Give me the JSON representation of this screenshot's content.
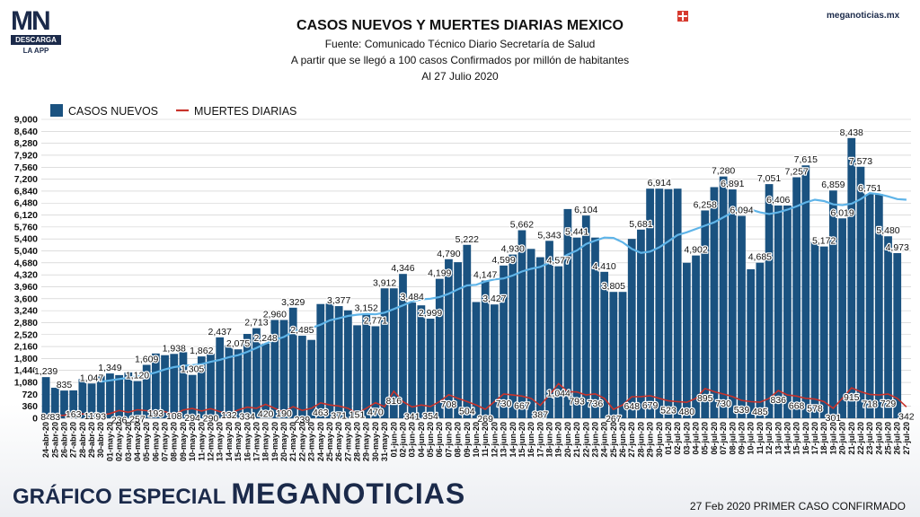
{
  "logo": {
    "mark": "MN",
    "descarga": "DESCARGA",
    "app": "LA APP"
  },
  "site_url": "meganoticias.mx",
  "footer": {
    "left": "GRÁFICO ESPECIAL",
    "brand": "MEGANOTICIAS",
    "right": "27 Feb 2020 PRIMER CASO CONFIRMADO"
  },
  "colors": {
    "bars": "#1a5280",
    "deaths": "#c8332b",
    "avg": "#5fb4e8",
    "brand": "#1b2a4a"
  },
  "chart_data": {
    "type": "bar",
    "title": "CASOS NUEVOS Y MUERTES DIARIAS MEXICO",
    "subtitles": [
      "Fuente: Comunicado Técnico Diario Secretaría de Salud",
      "A partir que se llegó a 100 casos Confirmados por millón de habitantes",
      "Al 27 Julio 2020"
    ],
    "legend": {
      "position": "top-left"
    },
    "ylim": [
      0,
      9000
    ],
    "yticks": [
      0,
      360,
      720,
      1080,
      1440,
      1800,
      2160,
      2520,
      2880,
      3240,
      3600,
      3960,
      4320,
      4680,
      5040,
      5400,
      5760,
      6120,
      6480,
      6840,
      7200,
      7560,
      7920,
      8280,
      8640,
      9000
    ],
    "grid": true,
    "categories": [
      "24-abr-20",
      "25-abr-20",
      "26-abr-20",
      "27-abr-20",
      "28-abr-20",
      "29-abr-20",
      "30-abr-20",
      "01-may-20",
      "02-may-20",
      "03-may-20",
      "04-may-20",
      "05-may-20",
      "06-may-20",
      "07-may-20",
      "08-may-20",
      "09-may-20",
      "10-may-20",
      "11-may-20",
      "12-may-20",
      "13-may-20",
      "14-may-20",
      "15-may-20",
      "16-may-20",
      "17-may-20",
      "18-may-20",
      "19-may-20",
      "20-may-20",
      "21-may-20",
      "22-may-20",
      "23-may-20",
      "24-may-20",
      "25-may-20",
      "26-may-20",
      "27-may-20",
      "28-may-20",
      "29-may-20",
      "30-may-20",
      "31-may-20",
      "01-jun-20",
      "02-jun-20",
      "03-jun-20",
      "04-jun-20",
      "05-jun-20",
      "06-jun-20",
      "07-jun-20",
      "08-jun-20",
      "09-jun-20",
      "10-jun-20",
      "11-jun-20",
      "12-jun-20",
      "13-jun-20",
      "14-jun-20",
      "15-jun-20",
      "16-jun-20",
      "17-jun-20",
      "18-jun-20",
      "19-jun-20",
      "20-jun-20",
      "21-jun-20",
      "22-jun-20",
      "23-jun-20",
      "24-jun-20",
      "25-jun-20",
      "26-jun-20",
      "27-jun-20",
      "28-jun-20",
      "29-jun-20",
      "30-jun-20",
      "01-jul-20",
      "02-jul-20",
      "03-jul-20",
      "04-jul-20",
      "05-jul-20",
      "06-jul-20",
      "07-jul-20",
      "08-jul-20",
      "09-jul-20",
      "10-jul-20",
      "11-jul-20",
      "12-jul-20",
      "13-jul-20",
      "14-jul-20",
      "15-jul-20",
      "16-jul-20",
      "17-jul-20",
      "18-jul-20",
      "19-jul-20",
      "20-jul-20",
      "21-jul-20",
      "22-jul-20",
      "23-jul-20",
      "24-jul-20",
      "25-jul-20",
      "26-jul-20",
      "27-jul-20"
    ],
    "series": [
      {
        "name": "CASOS NUEVOS",
        "kind": "bar",
        "values": [
          1239,
          920,
          835,
          840,
          1180,
          1047,
          1280,
          1349,
          1300,
          1380,
          1120,
          1609,
          1950,
          1900,
          1938,
          1990,
          1305,
          1862,
          1950,
          2437,
          2200,
          2075,
          2540,
          2713,
          2248,
          2960,
          2960,
          3329,
          2485,
          2360,
          3440,
          3450,
          3377,
          3250,
          2800,
          3152,
          2771,
          3912,
          3912,
          4346,
          3484,
          3400,
          2999,
          4199,
          4790,
          4700,
          5222,
          3500,
          4147,
          3427,
          4599,
          4930,
          5662,
          5100,
          4850,
          5343,
          4577,
          6300,
          5441,
          6104,
          5441,
          4410,
          3805,
          3805,
          5400,
          5681,
          6914,
          6914,
          6900,
          6914,
          4683,
          4902,
          6258,
          6960,
          7280,
          6891,
          6094,
          4486,
          4685,
          7051,
          6406,
          6406,
          7257,
          7615,
          5317,
          5172,
          6859,
          6019,
          8438,
          7573,
          6751,
          6751,
          5480,
          4973,
          null
        ],
        "labels": [
          "1,239",
          null,
          "835",
          null,
          null,
          "1,047",
          null,
          "1,349",
          null,
          null,
          "1,120",
          "1,609",
          null,
          null,
          "1,938",
          null,
          "1,305",
          "1,862",
          null,
          "2,437",
          null,
          "2,075",
          null,
          "2,713",
          "2,248",
          "2,960",
          null,
          "3,329",
          "2,485",
          null,
          null,
          null,
          "3,377",
          null,
          null,
          "3,152",
          "2,771",
          "3,912",
          null,
          "4,346",
          "3,484",
          null,
          "2,999",
          "4,199",
          "4,790",
          null,
          "5,222",
          null,
          "4,147",
          "3,427",
          "4,599",
          "4,930",
          "5,662",
          null,
          null,
          "5,343",
          "4,577",
          null,
          "5,441",
          "6,104",
          null,
          "4,410",
          "3,805",
          null,
          null,
          "5,681",
          null,
          "6,914",
          null,
          null,
          null,
          "4,902",
          "6,258",
          null,
          "7,280",
          "6,891",
          "6,094",
          null,
          "4,685",
          "7,051",
          "6,406",
          null,
          "7,257",
          "7,615",
          null,
          "5,172",
          "6,859",
          "6,019",
          "8,438",
          "7,573",
          "6,751",
          null,
          "5,480",
          "4,973",
          null
        ]
      },
      {
        "name": "MUERTES DIARIAS",
        "kind": "line",
        "values": [
          84,
          83,
          90,
          163,
          130,
          113,
          93,
          140,
          236,
          180,
          257,
          230,
          193,
          200,
          108,
          250,
          294,
          220,
          290,
          200,
          132,
          250,
          334,
          300,
          420,
          300,
          190,
          350,
          239,
          300,
          463,
          400,
          371,
          300,
          151,
          300,
          470,
          350,
          816,
          500,
          341,
          400,
          354,
          500,
          708,
          600,
          504,
          400,
          269,
          500,
          730,
          700,
          667,
          600,
          387,
          700,
          1044,
          800,
          793,
          700,
          736,
          600,
          267,
          400,
          648,
          650,
          679,
          600,
          523,
          500,
          480,
          600,
          895,
          800,
          730,
          650,
          539,
          500,
          485,
          600,
          836,
          700,
          668,
          600,
          578,
          500,
          301,
          600,
          915,
          800,
          718,
          700,
          729,
          600,
          342
        ],
        "labels": [
          "84",
          "83",
          null,
          "163",
          null,
          "113",
          "93",
          null,
          "236",
          null,
          "257",
          null,
          "193",
          null,
          "108",
          null,
          "294",
          null,
          "290",
          null,
          "132",
          null,
          "334",
          null,
          "420",
          null,
          "190",
          null,
          "239",
          null,
          "463",
          null,
          "371",
          null,
          "151",
          null,
          "470",
          null,
          "816",
          null,
          "341",
          null,
          "354",
          null,
          "708",
          null,
          "504",
          null,
          "269",
          null,
          "730",
          null,
          "667",
          null,
          "387",
          null,
          "1,044",
          null,
          "793",
          null,
          "736",
          null,
          "267",
          null,
          "648",
          null,
          "679",
          null,
          "523",
          null,
          "480",
          null,
          "895",
          null,
          "730",
          null,
          "539",
          null,
          "485",
          null,
          "836",
          null,
          "668",
          null,
          "578",
          null,
          "301",
          null,
          "915",
          null,
          "718",
          null,
          "729",
          null,
          "342"
        ]
      },
      {
        "kind": "moving-average",
        "values": [
          null,
          null,
          null,
          null,
          null,
          null,
          1100,
          1140,
          1180,
          1220,
          1260,
          1310,
          1380,
          1470,
          1540,
          1580,
          1600,
          1630,
          1700,
          1760,
          1840,
          1900,
          2000,
          2120,
          2250,
          2360,
          2450,
          2600,
          2680,
          2720,
          2820,
          2950,
          3010,
          3080,
          3120,
          3140,
          3130,
          3180,
          3290,
          3400,
          3520,
          3580,
          3600,
          3650,
          3750,
          3880,
          4000,
          4020,
          4120,
          4180,
          4210,
          4300,
          4420,
          4500,
          4560,
          4680,
          4780,
          4930,
          5050,
          5250,
          5350,
          5440,
          5430,
          5300,
          5100,
          4980,
          5020,
          5150,
          5330,
          5520,
          5600,
          5700,
          5800,
          5900,
          6050,
          6200,
          6300,
          6280,
          6200,
          6150,
          6200,
          6280,
          6380,
          6500,
          6580,
          6540,
          6440,
          6420,
          6460,
          6600,
          6780,
          6750,
          6680,
          6600,
          6580
        ]
      }
    ]
  }
}
